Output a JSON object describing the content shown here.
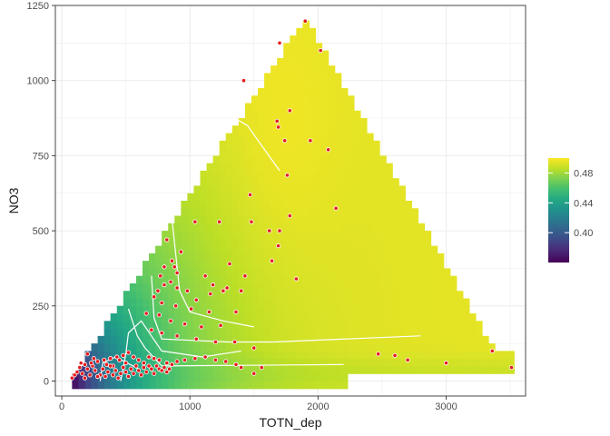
{
  "chart_data": {
    "type": "heatmap",
    "title": "",
    "xlabel": "TOTN_dep",
    "ylabel": "NO3",
    "xlim": [
      -50,
      3620
    ],
    "ylim": [
      -50,
      1250
    ],
    "x_ticks": [
      0,
      1000,
      2000,
      3000
    ],
    "x_tick_labels": [
      "0",
      "1000",
      "2000",
      "3000"
    ],
    "y_ticks": [
      0,
      250,
      500,
      750,
      1000,
      1250
    ],
    "y_tick_labels": [
      "0",
      "250",
      "500",
      "750",
      "1000",
      "1250"
    ],
    "grid": true,
    "legend": {
      "placement": "right",
      "title": "",
      "range": [
        0.36,
        0.5
      ],
      "ticks": [
        0.4,
        0.44,
        0.48
      ],
      "tick_labels": [
        "0.40",
        "0.44",
        "0.48"
      ],
      "colormap": [
        "#440154",
        "#482475",
        "#414487",
        "#355f8d",
        "#2a788e",
        "#21908d",
        "#22a884",
        "#42be71",
        "#7ad151",
        "#bddf26",
        "#fde725"
      ]
    },
    "surface": {
      "description_of_domain": "triangular region: NO3 between 0 and ~0.68*TOTN_dep, left edge near TOTN_dep = NO3*0.73 + 90",
      "low_value": 0.36,
      "high_value": 0.495
    },
    "contours": [
      {
        "level": 0.4,
        "points": [
          [
            300,
            0
          ],
          [
            320,
            60
          ],
          [
            420,
            80
          ],
          [
            600,
            40
          ]
        ]
      },
      {
        "level": 0.44,
        "points": [
          [
            460,
            0
          ],
          [
            500,
            90
          ],
          [
            520,
            160
          ],
          [
            620,
            200
          ],
          [
            780,
            100
          ],
          [
            1100,
            80
          ],
          [
            1400,
            100
          ]
        ]
      },
      {
        "level": 0.46,
        "points": [
          [
            520,
            240
          ],
          [
            590,
            150
          ],
          [
            650,
            110
          ],
          [
            780,
            50
          ],
          [
            2200,
            55
          ]
        ]
      },
      {
        "level": 0.47,
        "points": [
          [
            700,
            350
          ],
          [
            720,
            210
          ],
          [
            780,
            140
          ],
          [
            1300,
            130
          ],
          [
            1650,
            130
          ],
          [
            2800,
            150
          ]
        ]
      },
      {
        "level": 0.48,
        "points": [
          [
            860,
            540
          ],
          [
            920,
            300
          ],
          [
            1000,
            230
          ],
          [
            1260,
            200
          ],
          [
            1500,
            180
          ]
        ]
      },
      {
        "level": 0.49,
        "points": [
          [
            1250,
            900
          ],
          [
            1450,
            850
          ],
          [
            1550,
            790
          ],
          [
            1700,
            700
          ]
        ]
      }
    ],
    "points": [
      [
        1900,
        1198
      ],
      [
        1700,
        1125
      ],
      [
        2020,
        1100
      ],
      [
        1420,
        1000
      ],
      [
        1780,
        900
      ],
      [
        1680,
        865
      ],
      [
        1690,
        845
      ],
      [
        1740,
        800
      ],
      [
        1940,
        800
      ],
      [
        2080,
        770
      ],
      [
        1760,
        685
      ],
      [
        1480,
        530
      ],
      [
        2140,
        575
      ],
      [
        1780,
        550
      ],
      [
        1620,
        500
      ],
      [
        1700,
        500
      ],
      [
        1690,
        450
      ],
      [
        1470,
        620
      ],
      [
        1230,
        530
      ],
      [
        1040,
        530
      ],
      [
        1640,
        400
      ],
      [
        1830,
        340
      ],
      [
        820,
        470
      ],
      [
        930,
        430
      ],
      [
        860,
        400
      ],
      [
        880,
        380
      ],
      [
        900,
        360
      ],
      [
        800,
        380
      ],
      [
        770,
        350
      ],
      [
        1120,
        350
      ],
      [
        1430,
        350
      ],
      [
        850,
        330
      ],
      [
        800,
        320
      ],
      [
        900,
        310
      ],
      [
        750,
        300
      ],
      [
        1180,
        320
      ],
      [
        1260,
        300
      ],
      [
        1290,
        310
      ],
      [
        1400,
        300
      ],
      [
        1310,
        390
      ],
      [
        980,
        300
      ],
      [
        1160,
        290
      ],
      [
        1050,
        270
      ],
      [
        720,
        280
      ],
      [
        780,
        260
      ],
      [
        890,
        250
      ],
      [
        1010,
        240
      ],
      [
        1150,
        230
      ],
      [
        1360,
        230
      ],
      [
        660,
        225
      ],
      [
        760,
        220
      ],
      [
        850,
        200
      ],
      [
        960,
        190
      ],
      [
        1090,
        180
      ],
      [
        1240,
        185
      ],
      [
        700,
        170
      ],
      [
        780,
        160
      ],
      [
        900,
        150
      ],
      [
        1050,
        140
      ],
      [
        1200,
        130
      ],
      [
        1350,
        130
      ],
      [
        1500,
        110
      ],
      [
        350,
        55
      ],
      [
        250,
        75
      ],
      [
        200,
        90
      ],
      [
        150,
        60
      ],
      [
        100,
        20
      ],
      [
        80,
        10
      ],
      [
        400,
        50
      ],
      [
        450,
        70
      ],
      [
        500,
        60
      ],
      [
        520,
        95
      ],
      [
        560,
        80
      ],
      [
        600,
        70
      ],
      [
        640,
        60
      ],
      [
        680,
        80
      ],
      [
        720,
        75
      ],
      [
        760,
        70
      ],
      [
        820,
        60
      ],
      [
        860,
        55
      ],
      [
        900,
        65
      ],
      [
        960,
        70
      ],
      [
        1040,
        75
      ],
      [
        1120,
        80
      ],
      [
        1200,
        70
      ],
      [
        1280,
        65
      ],
      [
        1360,
        55
      ],
      [
        1400,
        45
      ],
      [
        1560,
        45
      ],
      [
        1500,
        25
      ],
      [
        300,
        20
      ],
      [
        320,
        40
      ],
      [
        340,
        15
      ],
      [
        360,
        30
      ],
      [
        380,
        50
      ],
      [
        400,
        20
      ],
      [
        420,
        35
      ],
      [
        440,
        10
      ],
      [
        460,
        25
      ],
      [
        480,
        45
      ],
      [
        500,
        30
      ],
      [
        520,
        15
      ],
      [
        540,
        40
      ],
      [
        560,
        25
      ],
      [
        580,
        50
      ],
      [
        600,
        35
      ],
      [
        620,
        20
      ],
      [
        640,
        45
      ],
      [
        660,
        30
      ],
      [
        680,
        50
      ],
      [
        700,
        40
      ],
      [
        720,
        25
      ],
      [
        740,
        50
      ],
      [
        760,
        40
      ],
      [
        780,
        35
      ],
      [
        800,
        45
      ],
      [
        820,
        30
      ],
      [
        840,
        40
      ],
      [
        120,
        30
      ],
      [
        140,
        45
      ],
      [
        160,
        25
      ],
      [
        180,
        10
      ],
      [
        200,
        40
      ],
      [
        220,
        20
      ],
      [
        240,
        50
      ],
      [
        260,
        35
      ],
      [
        280,
        15
      ],
      [
        180,
        55
      ],
      [
        230,
        60
      ],
      [
        280,
        65
      ],
      [
        330,
        70
      ],
      [
        380,
        75
      ],
      [
        430,
        80
      ],
      [
        480,
        85
      ],
      [
        3360,
        100
      ],
      [
        3510,
        45
      ],
      [
        2470,
        90
      ],
      [
        2600,
        85
      ],
      [
        2700,
        70
      ],
      [
        3000,
        60
      ]
    ]
  }
}
